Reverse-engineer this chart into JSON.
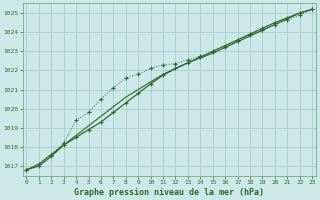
{
  "title": "Graphe pression niveau de la mer (hPa)",
  "bg_color": "#cce8e8",
  "grid_color": "#aacccc",
  "line_color": "#2d6a2d",
  "x_hours": [
    0,
    1,
    2,
    3,
    4,
    5,
    6,
    7,
    8,
    9,
    10,
    11,
    12,
    13,
    14,
    15,
    16,
    17,
    18,
    19,
    20,
    21,
    22,
    23
  ],
  "line_straight": [
    1016.8,
    1017.1,
    1017.6,
    1018.1,
    1018.6,
    1019.1,
    1019.6,
    1020.1,
    1020.6,
    1021.0,
    1021.4,
    1021.8,
    1022.1,
    1022.4,
    1022.65,
    1022.9,
    1023.2,
    1023.5,
    1023.8,
    1024.1,
    1024.4,
    1024.7,
    1025.0,
    1025.2
  ],
  "line_dotted": [
    1016.8,
    1017.1,
    1017.6,
    1018.2,
    1019.4,
    1019.8,
    1020.5,
    1021.1,
    1021.6,
    1021.8,
    1022.1,
    1022.3,
    1022.35,
    1022.55,
    1022.75,
    1022.95,
    1023.2,
    1023.55,
    1023.85,
    1024.1,
    1024.4,
    1024.65,
    1024.9,
    1025.2
  ],
  "line_solid": [
    1016.8,
    1017.0,
    1017.5,
    1018.1,
    1018.5,
    1018.9,
    1019.3,
    1019.8,
    1020.3,
    1020.8,
    1021.3,
    1021.75,
    1022.1,
    1022.4,
    1022.7,
    1023.0,
    1023.3,
    1023.6,
    1023.9,
    1024.2,
    1024.5,
    1024.75,
    1025.0,
    1025.2
  ],
  "ylim": [
    1016.5,
    1025.5
  ],
  "xlim": [
    -0.3,
    23.3
  ],
  "yticks": [
    1017,
    1018,
    1019,
    1020,
    1021,
    1022,
    1023,
    1024,
    1025
  ],
  "xticks": [
    0,
    1,
    2,
    3,
    4,
    5,
    6,
    7,
    8,
    9,
    10,
    11,
    12,
    13,
    14,
    15,
    16,
    17,
    18,
    19,
    20,
    21,
    22,
    23
  ]
}
